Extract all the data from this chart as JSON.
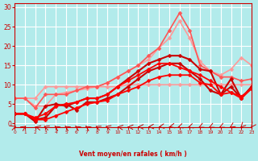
{
  "title": "",
  "xlabel": "Vent moyen/en rafales ( km/h )",
  "ylabel": "",
  "xlim": [
    0,
    23
  ],
  "ylim": [
    -1,
    31
  ],
  "yticks": [
    0,
    5,
    10,
    15,
    20,
    25,
    30
  ],
  "xticks": [
    0,
    1,
    2,
    3,
    4,
    5,
    6,
    7,
    8,
    9,
    10,
    11,
    12,
    13,
    14,
    15,
    16,
    17,
    18,
    19,
    20,
    21,
    22,
    23
  ],
  "bg_color": "#b2ebeb",
  "grid_color": "#ffffff",
  "series": [
    {
      "color": "#ff9999",
      "linewidth": 1.2,
      "marker": "D",
      "markersize": 2.5,
      "x": [
        0,
        1,
        2,
        3,
        4,
        5,
        6,
        7,
        8,
        9,
        10,
        11,
        12,
        13,
        14,
        15,
        16,
        17,
        18,
        19,
        20,
        21,
        22,
        23
      ],
      "y": [
        6.5,
        6.5,
        6.5,
        9.5,
        9.5,
        9.5,
        9.5,
        9.5,
        9.5,
        9.5,
        9.5,
        10.0,
        10.0,
        10.0,
        10.0,
        10.0,
        10.0,
        10.0,
        10.0,
        10.0,
        10.0,
        10.0,
        10.0,
        10.0
      ]
    },
    {
      "color": "#ff9999",
      "linewidth": 1.2,
      "marker": "D",
      "markersize": 2.5,
      "x": [
        0,
        1,
        2,
        3,
        4,
        5,
        6,
        7,
        8,
        9,
        10,
        11,
        12,
        13,
        14,
        15,
        16,
        17,
        18,
        19,
        20,
        21,
        22,
        23
      ],
      "y": [
        6.5,
        6.5,
        4.5,
        4.5,
        7.5,
        8.0,
        8.5,
        9.0,
        9.5,
        10.5,
        12.0,
        13.5,
        15.0,
        16.5,
        19.5,
        22.0,
        26.5,
        22.0,
        16.0,
        13.5,
        12.5,
        14.0,
        17.0,
        15.0
      ]
    },
    {
      "color": "#ff5555",
      "linewidth": 1.2,
      "marker": "D",
      "markersize": 2.5,
      "x": [
        0,
        1,
        2,
        3,
        4,
        5,
        6,
        7,
        8,
        9,
        10,
        11,
        12,
        13,
        14,
        15,
        16,
        17,
        18,
        19,
        20,
        21,
        22,
        23
      ],
      "y": [
        6.5,
        6.5,
        4.0,
        7.5,
        7.5,
        7.5,
        8.5,
        9.5,
        9.5,
        10.5,
        12.0,
        13.5,
        15.0,
        17.5,
        19.5,
        24.0,
        28.5,
        24.0,
        15.0,
        13.5,
        12.0,
        12.0,
        11.0,
        11.5
      ]
    },
    {
      "color": "#cc0000",
      "linewidth": 1.5,
      "marker": "D",
      "markersize": 2.5,
      "x": [
        0,
        1,
        2,
        3,
        4,
        5,
        6,
        7,
        8,
        9,
        10,
        11,
        12,
        13,
        14,
        15,
        16,
        17,
        18,
        19,
        20,
        21,
        22,
        23
      ],
      "y": [
        2.5,
        2.5,
        0.5,
        4.5,
        5.0,
        4.5,
        5.5,
        6.5,
        6.5,
        7.5,
        9.5,
        11.5,
        13.5,
        15.5,
        16.5,
        17.5,
        17.5,
        16.5,
        14.0,
        13.5,
        7.5,
        11.5,
        6.5,
        9.5
      ]
    },
    {
      "color": "#cc0000",
      "linewidth": 1.5,
      "marker": "D",
      "markersize": 2.5,
      "x": [
        0,
        1,
        2,
        3,
        4,
        5,
        6,
        7,
        8,
        9,
        10,
        11,
        12,
        13,
        14,
        15,
        16,
        17,
        18,
        19,
        20,
        21,
        22,
        23
      ],
      "y": [
        2.5,
        2.5,
        1.0,
        1.5,
        4.5,
        5.0,
        3.5,
        5.5,
        5.5,
        6.5,
        7.5,
        9.5,
        11.5,
        13.5,
        14.5,
        15.5,
        15.5,
        13.5,
        11.5,
        8.5,
        7.5,
        9.5,
        6.5,
        9.5
      ]
    },
    {
      "color": "#ff0000",
      "linewidth": 1.3,
      "marker": "D",
      "markersize": 2.5,
      "x": [
        0,
        1,
        2,
        3,
        4,
        5,
        6,
        7,
        8,
        9,
        10,
        11,
        12,
        13,
        14,
        15,
        16,
        17,
        18,
        19,
        20,
        21,
        22,
        23
      ],
      "y": [
        2.5,
        2.5,
        1.5,
        2.5,
        4.5,
        5.0,
        5.5,
        6.5,
        6.5,
        7.5,
        9.5,
        11.0,
        12.5,
        14.0,
        15.5,
        15.5,
        14.5,
        13.5,
        12.5,
        11.0,
        9.5,
        8.0,
        7.0,
        9.0
      ]
    },
    {
      "color": "#ff0000",
      "linewidth": 1.3,
      "marker": "D",
      "markersize": 2.5,
      "x": [
        0,
        1,
        2,
        3,
        4,
        5,
        6,
        7,
        8,
        9,
        10,
        11,
        12,
        13,
        14,
        15,
        16,
        17,
        18,
        19,
        20,
        21,
        22,
        23
      ],
      "y": [
        2.5,
        2.5,
        1.0,
        1.0,
        2.0,
        3.0,
        4.0,
        5.0,
        5.5,
        6.0,
        7.5,
        8.5,
        9.5,
        11.0,
        12.0,
        12.5,
        12.5,
        12.5,
        10.5,
        10.0,
        7.5,
        8.0,
        6.5,
        9.0
      ]
    }
  ],
  "wind_arrows": {
    "x": [
      0,
      1,
      2,
      3,
      4,
      5,
      6,
      7,
      8,
      9,
      10,
      11,
      12,
      13,
      14,
      15,
      16,
      17,
      18,
      19,
      20,
      21,
      22,
      23
    ],
    "angles": [
      45,
      30,
      300,
      315,
      330,
      330,
      330,
      330,
      320,
      310,
      290,
      280,
      270,
      260,
      250,
      240,
      230,
      230,
      220,
      220,
      220,
      210,
      200,
      195
    ]
  }
}
